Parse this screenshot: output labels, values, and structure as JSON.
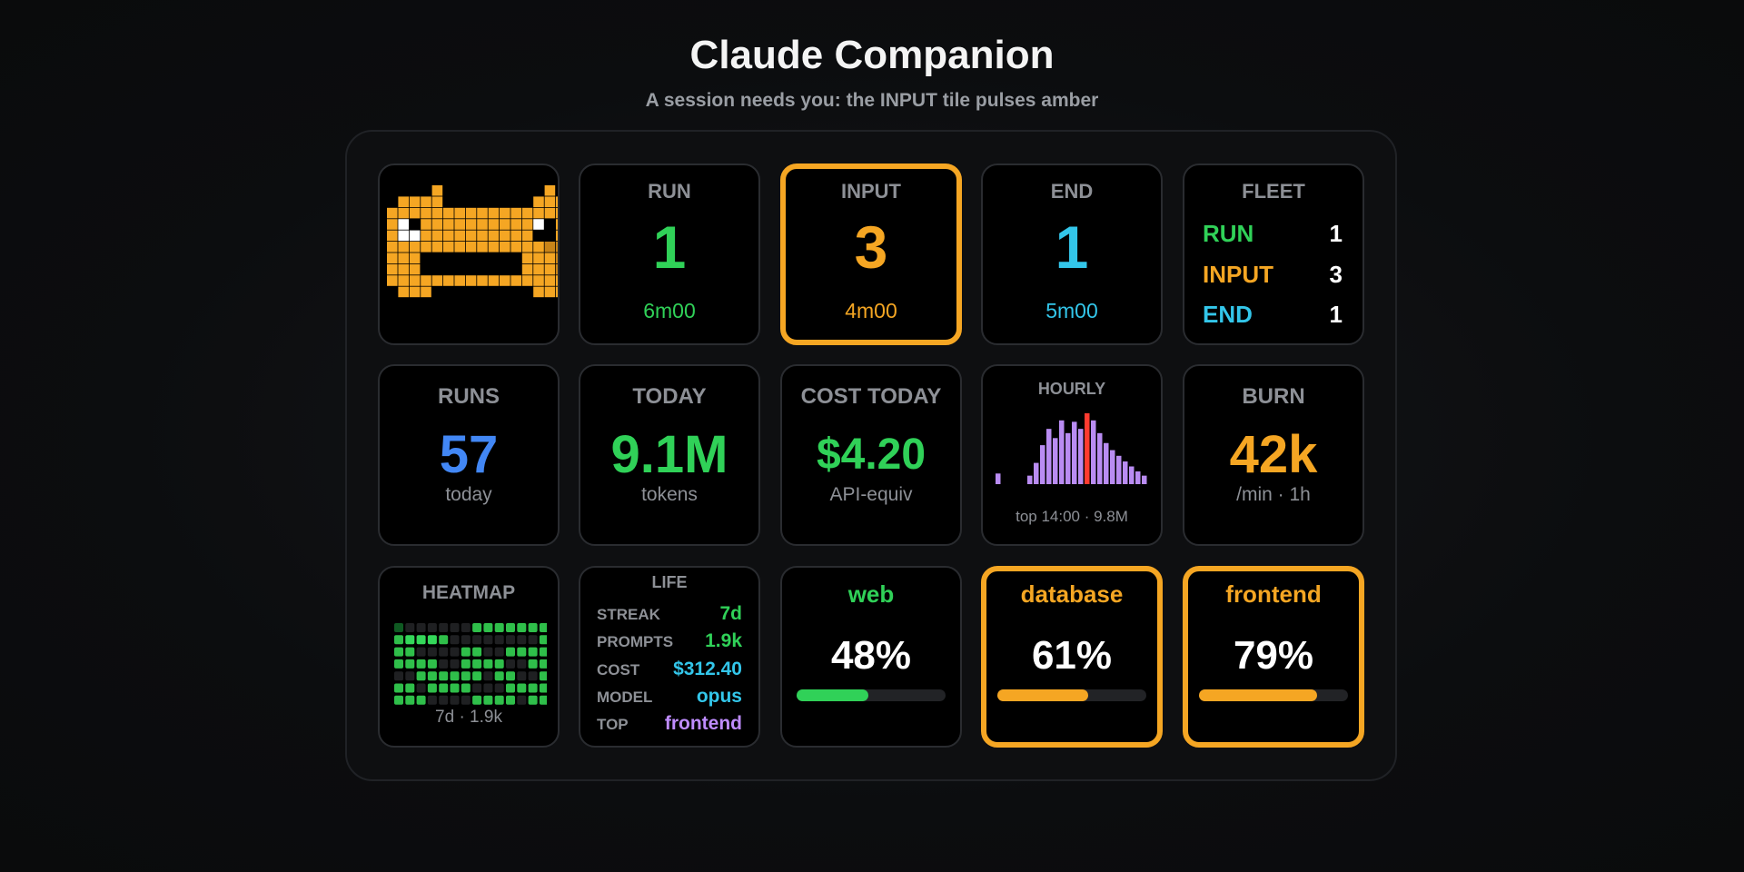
{
  "header": {
    "title": "Claude Companion",
    "subtitle": "A session needs you: the INPUT tile pulses amber"
  },
  "mascot": {
    "icon": "pixel-cat-mascot",
    "color": "#f5a623"
  },
  "states": [
    {
      "label": "RUN",
      "count": "1",
      "time": "6m00",
      "color": "#30d158",
      "alert": false
    },
    {
      "label": "INPUT",
      "count": "3",
      "time": "4m00",
      "color": "#f5a623",
      "alert": true
    },
    {
      "label": "END",
      "count": "1",
      "time": "5m00",
      "color": "#33c6ea",
      "alert": false
    }
  ],
  "fleet": {
    "label": "FLEET",
    "rows": [
      {
        "label": "RUN",
        "value": "1"
      },
      {
        "label": "INPUT",
        "value": "3"
      },
      {
        "label": "END",
        "value": "1"
      }
    ]
  },
  "stats": {
    "runs": {
      "label": "RUNS",
      "value": "57",
      "sub": "today"
    },
    "today": {
      "label": "TODAY",
      "value": "9.1M",
      "sub": "tokens"
    },
    "cost": {
      "label": "COST TODAY",
      "value": "$4.20",
      "sub": "API-equiv"
    },
    "burn": {
      "label": "BURN",
      "value": "42k",
      "sub": "/min · 1h"
    }
  },
  "hourly": {
    "label": "HOURLY",
    "sub": "top 14:00 · 9.8M",
    "bars": [
      0.15,
      0,
      0,
      0,
      0,
      0.12,
      0.3,
      0.55,
      0.78,
      0.65,
      0.9,
      0.72,
      0.88,
      0.78,
      1.0,
      0.9,
      0.72,
      0.58,
      0.48,
      0.4,
      0.32,
      0.25,
      0.18,
      0.12
    ],
    "peak_index": 14,
    "bar_color": "#b98cf2",
    "peak_color": "#ff3b30"
  },
  "heatmap": {
    "label": "HEATMAP",
    "sub": "7d · 1.9k",
    "cells": [
      [
        1,
        0,
        0,
        0,
        0,
        0,
        0,
        2,
        2,
        2,
        2,
        2,
        2,
        2
      ],
      [
        2,
        3,
        3,
        3,
        2,
        0,
        0,
        0,
        0,
        0,
        0,
        0,
        0,
        2
      ],
      [
        2,
        2,
        0,
        0,
        0,
        0,
        2,
        2,
        0,
        0,
        2,
        2,
        2,
        2
      ],
      [
        2,
        2,
        2,
        2,
        0,
        0,
        2,
        2,
        2,
        2,
        0,
        0,
        2,
        2
      ],
      [
        0,
        0,
        2,
        2,
        2,
        2,
        2,
        2,
        0,
        2,
        2,
        0,
        0,
        2
      ],
      [
        2,
        2,
        0,
        2,
        2,
        2,
        2,
        0,
        0,
        0,
        2,
        2,
        2,
        2
      ],
      [
        2,
        2,
        2,
        0,
        0,
        0,
        0,
        2,
        2,
        2,
        2,
        0,
        2,
        2
      ]
    ]
  },
  "life": {
    "label": "LIFE",
    "rows": [
      {
        "key": "STREAK",
        "value": "7d",
        "color": "#30d158"
      },
      {
        "key": "PROMPTS",
        "value": "1.9k",
        "color": "#30d158"
      },
      {
        "key": "COST",
        "value": "$312.40",
        "color": "#33c6ea"
      },
      {
        "key": "MODEL",
        "value": "opus",
        "color": "#33c6ea"
      },
      {
        "key": "TOP",
        "value": "frontend",
        "color": "#bf8cff"
      }
    ]
  },
  "projects": [
    {
      "name": "web",
      "pct": "48%",
      "fraction": 0.48,
      "color": "#30d158",
      "alert": false
    },
    {
      "name": "database",
      "pct": "61%",
      "fraction": 0.61,
      "color": "#f5a623",
      "alert": true
    },
    {
      "name": "frontend",
      "pct": "79%",
      "fraction": 0.79,
      "color": "#f5a623",
      "alert": true
    }
  ],
  "colors": {
    "run": "#30d158",
    "input": "#f5a623",
    "end": "#33c6ea",
    "runs": "#4287f5",
    "accent_purple": "#bf8cff"
  }
}
